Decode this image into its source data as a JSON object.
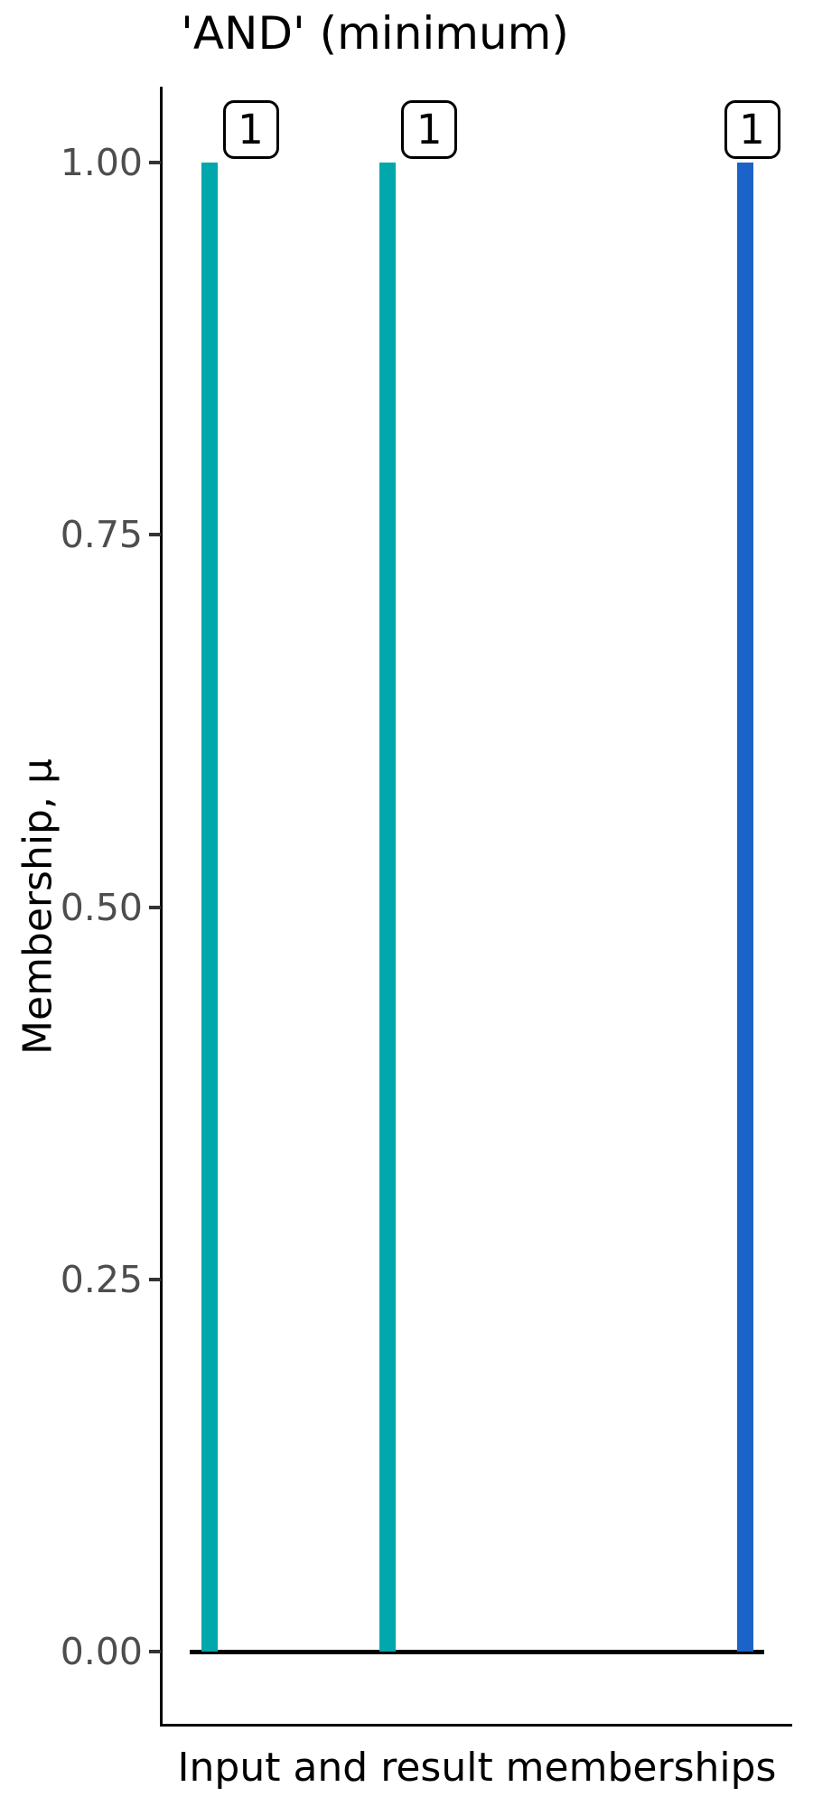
{
  "chart_data": {
    "type": "bar",
    "title": "'AND' (minimum)",
    "xlabel": "Input and result memberships",
    "ylabel": "Membership, μ",
    "ylim": [
      0,
      1
    ],
    "xlim": [
      1,
      4
    ],
    "grid": false,
    "legend": false,
    "yticks": [
      {
        "value": 1.0,
        "label": "1.00"
      },
      {
        "value": 0.75,
        "label": "0.75"
      },
      {
        "value": 0.5,
        "label": "0.50"
      },
      {
        "value": 0.25,
        "label": "0.25"
      },
      {
        "value": 0.0,
        "label": "0.00"
      }
    ],
    "bars": [
      {
        "name": "input-membership-1",
        "x": 1,
        "value": 1,
        "label": "1",
        "color": "#00a8ac"
      },
      {
        "name": "input-membership-2",
        "x": 2,
        "value": 1,
        "label": "1",
        "color": "#00a8ac"
      },
      {
        "name": "result-membership",
        "x": 4,
        "value": 1,
        "label": "1",
        "color": "#1b63c9"
      }
    ],
    "baseline": {
      "value": 0,
      "color": "#000000"
    },
    "colors": {
      "axis_line": "#000000",
      "tick_mark": "#333333",
      "tick_label": "#4d4d4d",
      "text": "#000000",
      "label_box_fill": "#ffffff",
      "label_box_border": "#000000",
      "background": "#ffffff"
    }
  }
}
